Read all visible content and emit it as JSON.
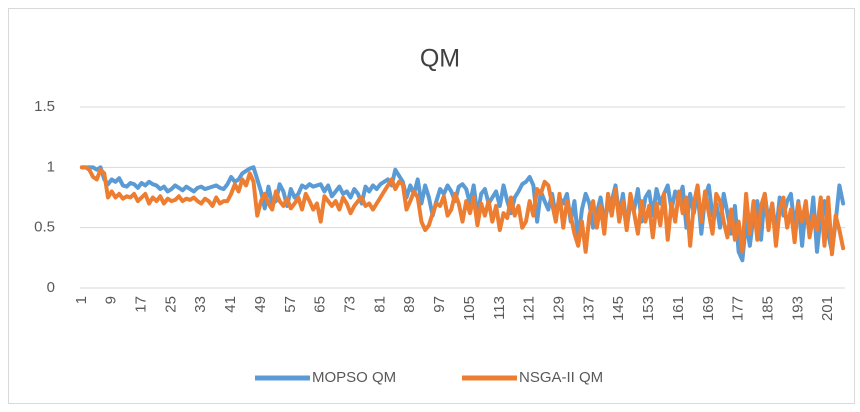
{
  "chart_data": {
    "type": "line",
    "title": "QM",
    "categories": [
      1,
      null,
      null,
      null,
      null,
      null,
      null,
      null,
      9,
      null,
      null,
      null,
      null,
      null,
      null,
      null,
      17,
      null,
      null,
      null,
      null,
      null,
      null,
      null,
      25,
      null,
      null,
      null,
      null,
      null,
      null,
      null,
      33,
      null,
      null,
      null,
      null,
      null,
      null,
      null,
      41,
      null,
      null,
      null,
      null,
      null,
      null,
      null,
      49,
      null,
      null,
      null,
      null,
      null,
      null,
      null,
      57,
      null,
      null,
      null,
      null,
      null,
      null,
      null,
      65,
      null,
      null,
      null,
      null,
      null,
      null,
      null,
      73,
      null,
      null,
      null,
      null,
      null,
      null,
      null,
      81,
      null,
      null,
      null,
      null,
      null,
      null,
      null,
      89,
      null,
      null,
      null,
      null,
      null,
      null,
      null,
      97,
      null,
      null,
      null,
      null,
      null,
      null,
      null,
      105,
      null,
      null,
      null,
      null,
      null,
      null,
      null,
      113,
      null,
      null,
      null,
      null,
      null,
      null,
      null,
      121,
      null,
      null,
      null,
      null,
      null,
      null,
      null,
      129,
      null,
      null,
      null,
      null,
      null,
      null,
      null,
      137,
      null,
      null,
      null,
      null,
      null,
      null,
      null,
      145,
      null,
      null,
      null,
      null,
      null,
      null,
      null,
      153,
      null,
      null,
      null,
      null,
      null,
      null,
      null,
      161,
      null,
      null,
      null,
      null,
      null,
      null,
      null,
      169,
      null,
      null,
      null,
      null,
      null,
      null,
      null,
      177,
      null,
      null,
      null,
      null,
      null,
      null,
      null,
      185,
      null,
      null,
      null,
      null,
      null,
      null,
      null,
      193,
      null,
      null,
      null,
      null,
      null,
      null,
      null,
      201,
      null,
      null,
      null,
      null
    ],
    "series": [
      {
        "name": "MOPSO QM",
        "color": "#5b9bd5",
        "values": [
          1,
          1,
          1,
          1,
          0.98,
          1,
          0.9,
          0.86,
          0.9,
          0.88,
          0.91,
          0.85,
          0.84,
          0.87,
          0.86,
          0.83,
          0.87,
          0.85,
          0.88,
          0.86,
          0.85,
          0.82,
          0.84,
          0.8,
          0.82,
          0.85,
          0.83,
          0.81,
          0.84,
          0.82,
          0.8,
          0.83,
          0.84,
          0.82,
          0.83,
          0.84,
          0.85,
          0.83,
          0.82,
          0.86,
          0.92,
          0.88,
          0.9,
          0.95,
          0.97,
          0.99,
          1.0,
          0.9,
          0.8,
          0.66,
          0.84,
          0.7,
          0.72,
          0.86,
          0.8,
          0.68,
          0.82,
          0.75,
          0.78,
          0.85,
          0.83,
          0.86,
          0.84,
          0.85,
          0.86,
          0.8,
          0.85,
          0.76,
          0.8,
          0.84,
          0.78,
          0.8,
          0.75,
          0.82,
          0.78,
          0.7,
          0.84,
          0.8,
          0.85,
          0.82,
          0.86,
          0.88,
          0.9,
          0.85,
          0.98,
          0.93,
          0.88,
          0.75,
          0.85,
          0.78,
          0.9,
          0.7,
          0.85,
          0.75,
          0.6,
          0.72,
          0.82,
          0.78,
          0.85,
          0.8,
          0.72,
          0.84,
          0.86,
          0.82,
          0.7,
          0.85,
          0.6,
          0.78,
          0.82,
          0.7,
          0.75,
          0.8,
          0.68,
          0.85,
          0.72,
          0.62,
          0.75,
          0.8,
          0.86,
          0.88,
          0.92,
          0.85,
          0.55,
          0.8,
          0.72,
          0.65,
          0.78,
          0.6,
          0.75,
          0.7,
          0.78,
          0.55,
          0.72,
          0.4,
          0.65,
          0.78,
          0.7,
          0.5,
          0.62,
          0.75,
          0.55,
          0.68,
          0.72,
          0.85,
          0.6,
          0.78,
          0.5,
          0.7,
          0.65,
          0.82,
          0.55,
          0.75,
          0.8,
          0.6,
          0.82,
          0.7,
          0.78,
          0.85,
          0.65,
          0.8,
          0.72,
          0.84,
          0.5,
          0.78,
          0.62,
          0.8,
          0.45,
          0.75,
          0.85,
          0.6,
          0.7,
          0.5,
          0.78,
          0.62,
          0.45,
          0.68,
          0.3,
          0.23,
          0.55,
          0.35,
          0.6,
          0.72,
          0.4,
          0.78,
          0.55,
          0.7,
          0.45,
          0.75,
          0.6,
          0.72,
          0.78,
          0.5,
          0.72,
          0.35,
          0.68,
          0.45,
          0.75,
          0.3,
          0.6,
          0.72,
          0.45,
          0.3,
          0.55,
          0.85,
          0.7
        ]
      },
      {
        "name": "NSGA-II QM",
        "color": "#ed7d31",
        "values": [
          1,
          1,
          0.98,
          0.92,
          0.9,
          0.98,
          0.95,
          0.75,
          0.8,
          0.75,
          0.78,
          0.74,
          0.76,
          0.75,
          0.78,
          0.72,
          0.75,
          0.78,
          0.7,
          0.75,
          0.72,
          0.76,
          0.7,
          0.74,
          0.72,
          0.73,
          0.76,
          0.72,
          0.74,
          0.73,
          0.75,
          0.72,
          0.7,
          0.74,
          0.72,
          0.68,
          0.75,
          0.7,
          0.72,
          0.72,
          0.78,
          0.86,
          0.8,
          0.9,
          0.85,
          0.95,
          0.88,
          0.6,
          0.72,
          0.78,
          0.7,
          0.65,
          0.8,
          0.72,
          0.68,
          0.74,
          0.66,
          0.7,
          0.75,
          0.65,
          0.78,
          0.72,
          0.65,
          0.7,
          0.55,
          0.76,
          0.72,
          0.68,
          0.72,
          0.65,
          0.75,
          0.7,
          0.62,
          0.68,
          0.72,
          0.75,
          0.68,
          0.7,
          0.65,
          0.7,
          0.75,
          0.8,
          0.85,
          0.9,
          0.82,
          0.88,
          0.86,
          0.65,
          0.72,
          0.8,
          0.75,
          0.55,
          0.48,
          0.52,
          0.62,
          0.7,
          0.68,
          0.76,
          0.6,
          0.65,
          0.78,
          0.7,
          0.55,
          0.72,
          0.62,
          0.75,
          0.52,
          0.7,
          0.6,
          0.72,
          0.55,
          0.68,
          0.48,
          0.62,
          0.58,
          0.75,
          0.6,
          0.68,
          0.5,
          0.55,
          0.72,
          0.6,
          0.82,
          0.78,
          0.88,
          0.85,
          0.7,
          0.55,
          0.78,
          0.5,
          0.72,
          0.6,
          0.45,
          0.35,
          0.55,
          0.3,
          0.6,
          0.72,
          0.5,
          0.68,
          0.45,
          0.78,
          0.6,
          0.82,
          0.55,
          0.72,
          0.48,
          0.78,
          0.62,
          0.45,
          0.72,
          0.55,
          0.68,
          0.42,
          0.7,
          0.52,
          0.78,
          0.4,
          0.7,
          0.55,
          0.8,
          0.62,
          0.75,
          0.35,
          0.7,
          0.85,
          0.55,
          0.8,
          0.62,
          0.45,
          0.78,
          0.72,
          0.55,
          0.42,
          0.65,
          0.4,
          0.55,
          0.3,
          0.78,
          0.45,
          0.72,
          0.4,
          0.68,
          0.78,
          0.48,
          0.7,
          0.35,
          0.65,
          0.75,
          0.5,
          0.65,
          0.38,
          0.7,
          0.55,
          0.72,
          0.42,
          0.6,
          0.48,
          0.75,
          0.35,
          0.75,
          0.28,
          0.6,
          0.48,
          0.33
        ]
      }
    ],
    "ylim": [
      0,
      1.5
    ],
    "yticks": [
      0,
      0.5,
      1,
      1.5
    ],
    "grid": true,
    "legend": "bottom"
  }
}
